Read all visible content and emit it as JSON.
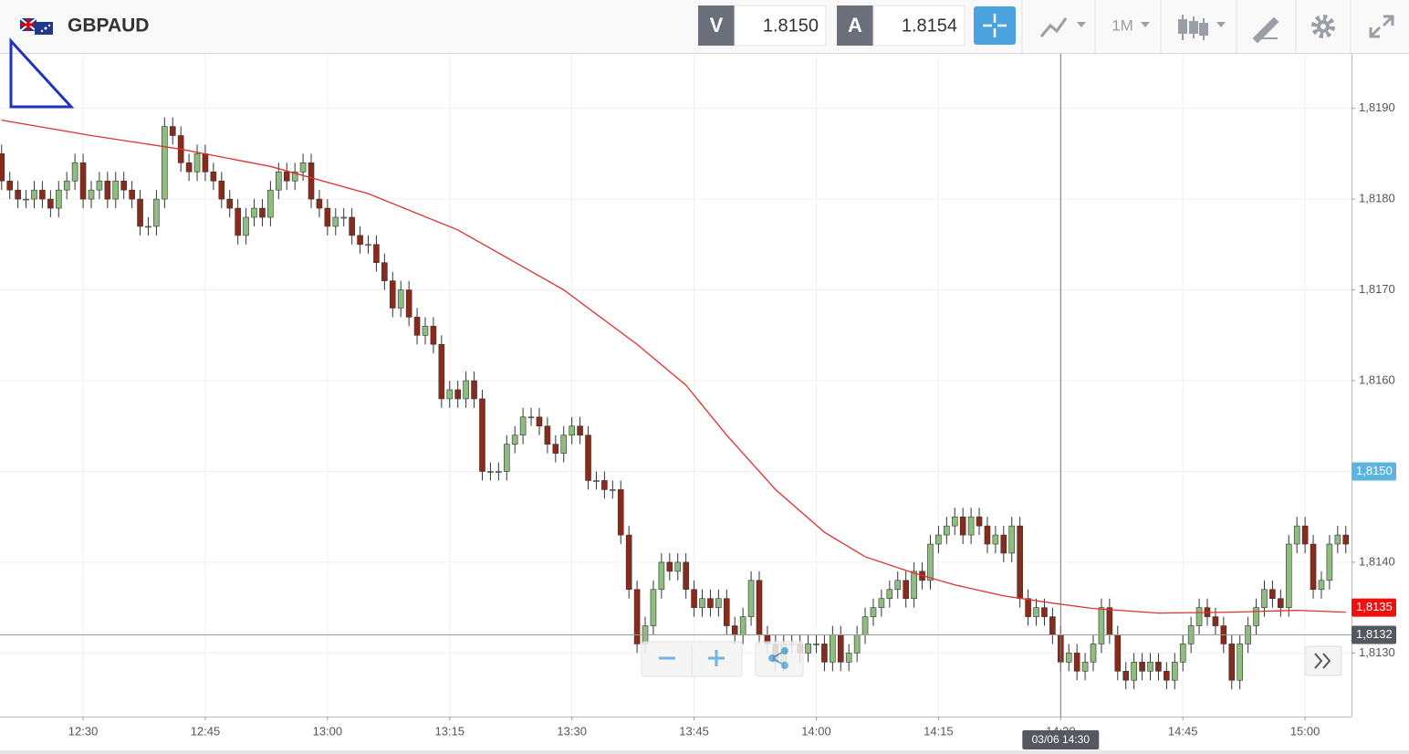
{
  "toolbar": {
    "symbol": "GBPAUD",
    "sell_label": "V",
    "sell_price": "1.8150",
    "buy_label": "A",
    "buy_price": "1.8154",
    "timeframe": "1M"
  },
  "chart_data": {
    "type": "candlestick",
    "xlim": [
      739.8,
      905.7
    ],
    "ylim": [
      1.8123,
      1.8196
    ],
    "grid": true,
    "xticks": [
      {
        "value": 750,
        "label": "12:30"
      },
      {
        "value": 765,
        "label": "12:45"
      },
      {
        "value": 780,
        "label": "13:00"
      },
      {
        "value": 795,
        "label": "13:15"
      },
      {
        "value": 810,
        "label": "13:30"
      },
      {
        "value": 825,
        "label": "13:45"
      },
      {
        "value": 840,
        "label": "14:00"
      },
      {
        "value": 855,
        "label": "14:15"
      },
      {
        "value": 870,
        "label": "14:30"
      },
      {
        "value": 885,
        "label": "14:45"
      },
      {
        "value": 900,
        "label": "15:00"
      }
    ],
    "yticks": [
      {
        "value": 1.813,
        "label": "1,8130"
      },
      {
        "value": 1.814,
        "label": "1,8140"
      },
      {
        "value": 1.815,
        "label": "1,8150"
      },
      {
        "value": 1.816,
        "label": "1,8160"
      },
      {
        "value": 1.817,
        "label": "1,8170"
      },
      {
        "value": 1.818,
        "label": "1,8180"
      },
      {
        "value": 1.819,
        "label": "1,8190"
      }
    ],
    "candles": {
      "up_color": "#8fbc7f",
      "down_color": "#8b2a1a",
      "x": [
        740,
        741,
        742,
        743,
        744,
        745,
        746,
        747,
        748,
        749,
        750,
        751,
        752,
        753,
        754,
        755,
        756,
        757,
        758,
        759,
        760,
        761,
        762,
        763,
        764,
        765,
        766,
        767,
        768,
        769,
        770,
        771,
        772,
        773,
        774,
        775,
        776,
        777,
        778,
        779,
        780,
        781,
        782,
        783,
        784,
        785,
        786,
        787,
        788,
        789,
        790,
        791,
        792,
        793,
        794,
        795,
        796,
        797,
        798,
        799,
        800,
        801,
        802,
        803,
        804,
        805,
        806,
        807,
        808,
        809,
        810,
        811,
        812,
        813,
        814,
        815,
        816,
        817,
        818,
        819,
        820,
        821,
        822,
        823,
        824,
        825,
        826,
        827,
        828,
        829,
        830,
        831,
        832,
        833,
        834,
        835,
        836,
        837,
        838,
        839,
        840,
        841,
        842,
        843,
        844,
        845,
        846,
        847,
        848,
        849,
        850,
        851,
        852,
        853,
        854,
        855,
        856,
        857,
        858,
        859,
        860,
        861,
        862,
        863,
        864,
        865,
        866,
        867,
        868,
        869,
        870,
        871,
        872,
        873,
        874,
        875,
        876,
        877,
        878,
        879,
        880,
        881,
        882,
        883,
        884,
        885,
        886,
        887,
        888,
        889,
        890,
        891,
        892,
        893,
        894,
        895,
        896,
        897,
        898,
        899,
        900,
        901,
        902,
        903,
        904,
        905
      ],
      "open": [
        1.8185,
        1.8182,
        1.8181,
        1.818,
        1.818,
        1.8181,
        1.818,
        1.8179,
        1.8181,
        1.8182,
        1.8184,
        1.818,
        1.8181,
        1.8182,
        1.818,
        1.8182,
        1.8181,
        1.818,
        1.8177,
        1.8177,
        1.818,
        1.8188,
        1.8187,
        1.8184,
        1.8183,
        1.8185,
        1.8183,
        1.8182,
        1.818,
        1.8179,
        1.8176,
        1.8178,
        1.8179,
        1.8178,
        1.8181,
        1.8183,
        1.8182,
        1.8183,
        1.8184,
        1.818,
        1.8179,
        1.8177,
        1.8178,
        1.8178,
        1.8176,
        1.8175,
        1.8175,
        1.8173,
        1.8171,
        1.8168,
        1.817,
        1.8167,
        1.8165,
        1.8166,
        1.8164,
        1.8158,
        1.8159,
        1.8158,
        1.816,
        1.8158,
        1.815,
        1.815,
        1.815,
        1.8153,
        1.8154,
        1.8156,
        1.8156,
        1.8155,
        1.8153,
        1.8152,
        1.8154,
        1.8155,
        1.8154,
        1.8149,
        1.8149,
        1.8148,
        1.8148,
        1.8143,
        1.8137,
        1.8131,
        1.8133,
        1.8137,
        1.814,
        1.8139,
        1.814,
        1.8137,
        1.8135,
        1.8136,
        1.8135,
        1.8136,
        1.8133,
        1.8132,
        1.8134,
        1.8138,
        1.8132,
        1.8131,
        1.8129,
        1.8131,
        1.8131,
        1.813,
        1.8131,
        1.8131,
        1.8129,
        1.8132,
        1.8129,
        1.813,
        1.8132,
        1.8134,
        1.8135,
        1.8136,
        1.8137,
        1.8138,
        1.8136,
        1.8139,
        1.8138,
        1.8142,
        1.8143,
        1.8144,
        1.8145,
        1.8143,
        1.8145,
        1.8144,
        1.8142,
        1.8143,
        1.8141,
        1.8144,
        1.8136,
        1.8134,
        1.8135,
        1.8134,
        1.8132,
        1.8129,
        1.813,
        1.8128,
        1.8129,
        1.8131,
        1.8135,
        1.8132,
        1.8128,
        1.8127,
        1.8129,
        1.8128,
        1.8129,
        1.8128,
        1.8127,
        1.8129,
        1.8131,
        1.8133,
        1.8135,
        1.8134,
        1.8133,
        1.8131,
        1.8127,
        1.8131,
        1.8133,
        1.8135,
        1.8137,
        1.8136,
        1.8135,
        1.8142,
        1.8144,
        1.8142,
        1.8137,
        1.8138,
        1.8142,
        1.8143
      ],
      "high": [
        1.8186,
        1.8183,
        1.8182,
        1.8181,
        1.8182,
        1.8182,
        1.8181,
        1.8182,
        1.8183,
        1.8185,
        1.8185,
        1.8182,
        1.8183,
        1.8183,
        1.8183,
        1.8183,
        1.8182,
        1.8181,
        1.8178,
        1.8181,
        1.8189,
        1.8189,
        1.8188,
        1.8185,
        1.8186,
        1.8186,
        1.8184,
        1.8183,
        1.8181,
        1.818,
        1.8179,
        1.818,
        1.818,
        1.8182,
        1.8184,
        1.8184,
        1.8184,
        1.8185,
        1.8185,
        1.8181,
        1.818,
        1.8179,
        1.8179,
        1.8179,
        1.8177,
        1.8176,
        1.8176,
        1.8174,
        1.8172,
        1.8171,
        1.8171,
        1.8168,
        1.8167,
        1.8167,
        1.8165,
        1.816,
        1.816,
        1.8161,
        1.8161,
        1.8159,
        1.8151,
        1.8151,
        1.8154,
        1.8155,
        1.8157,
        1.8157,
        1.8157,
        1.8156,
        1.8154,
        1.8155,
        1.8156,
        1.8156,
        1.8155,
        1.815,
        1.815,
        1.8149,
        1.8149,
        1.8144,
        1.8138,
        1.8134,
        1.8138,
        1.8141,
        1.8141,
        1.8141,
        1.8141,
        1.8138,
        1.8137,
        1.8137,
        1.8137,
        1.8137,
        1.8134,
        1.8135,
        1.8139,
        1.8139,
        1.8133,
        1.8132,
        1.8132,
        1.8132,
        1.8132,
        1.8132,
        1.8132,
        1.8132,
        1.8133,
        1.8133,
        1.8131,
        1.8133,
        1.8135,
        1.8136,
        1.8137,
        1.8138,
        1.8139,
        1.8139,
        1.814,
        1.814,
        1.8143,
        1.8144,
        1.8145,
        1.8146,
        1.8146,
        1.8146,
        1.8146,
        1.8145,
        1.8144,
        1.8144,
        1.8145,
        1.8145,
        1.8137,
        1.8136,
        1.8136,
        1.8135,
        1.8133,
        1.8131,
        1.8131,
        1.813,
        1.8132,
        1.8136,
        1.8136,
        1.8133,
        1.8129,
        1.813,
        1.813,
        1.813,
        1.813,
        1.8129,
        1.813,
        1.8132,
        1.8134,
        1.8136,
        1.8136,
        1.8135,
        1.8134,
        1.8132,
        1.8132,
        1.8134,
        1.8136,
        1.8138,
        1.8138,
        1.8137,
        1.8143,
        1.8145,
        1.8145,
        1.8143,
        1.8139,
        1.8143,
        1.8144,
        1.8144
      ],
      "low": [
        1.8181,
        1.818,
        1.8179,
        1.8179,
        1.8179,
        1.8179,
        1.8178,
        1.8178,
        1.818,
        1.8181,
        1.8179,
        1.8179,
        1.818,
        1.8179,
        1.8179,
        1.818,
        1.8179,
        1.8176,
        1.8176,
        1.8176,
        1.8179,
        1.8186,
        1.8183,
        1.8182,
        1.8182,
        1.8182,
        1.8181,
        1.8179,
        1.8178,
        1.8175,
        1.8175,
        1.8177,
        1.8177,
        1.8177,
        1.818,
        1.8181,
        1.8181,
        1.8182,
        1.8179,
        1.8178,
        1.8176,
        1.8176,
        1.8177,
        1.8175,
        1.8174,
        1.8174,
        1.8172,
        1.817,
        1.8167,
        1.8167,
        1.8166,
        1.8164,
        1.8164,
        1.8163,
        1.8157,
        1.8157,
        1.8157,
        1.8157,
        1.8157,
        1.8149,
        1.8149,
        1.8149,
        1.8149,
        1.8152,
        1.8153,
        1.8155,
        1.8154,
        1.8152,
        1.8151,
        1.8151,
        1.8153,
        1.8153,
        1.8148,
        1.8148,
        1.8147,
        1.8147,
        1.8142,
        1.8136,
        1.813,
        1.813,
        1.8132,
        1.8136,
        1.8138,
        1.8138,
        1.8136,
        1.8134,
        1.8134,
        1.8134,
        1.8134,
        1.8132,
        1.8131,
        1.8131,
        1.8133,
        1.8131,
        1.813,
        1.8128,
        1.8128,
        1.813,
        1.8129,
        1.8129,
        1.813,
        1.8128,
        1.8128,
        1.8128,
        1.8128,
        1.8129,
        1.8131,
        1.8133,
        1.8134,
        1.8135,
        1.8136,
        1.8135,
        1.8135,
        1.8137,
        1.8137,
        1.8141,
        1.8142,
        1.8143,
        1.8142,
        1.8142,
        1.8143,
        1.8141,
        1.8141,
        1.814,
        1.814,
        1.8135,
        1.8133,
        1.8133,
        1.8133,
        1.8131,
        1.8128,
        1.8128,
        1.8127,
        1.8127,
        1.8128,
        1.813,
        1.8131,
        1.8127,
        1.8126,
        1.8126,
        1.8127,
        1.8127,
        1.8127,
        1.8126,
        1.8126,
        1.8128,
        1.813,
        1.8132,
        1.8133,
        1.8132,
        1.813,
        1.8126,
        1.8126,
        1.813,
        1.8132,
        1.8134,
        1.8135,
        1.8134,
        1.8134,
        1.8141,
        1.8141,
        1.8136,
        1.8136,
        1.8137,
        1.8141,
        1.8141
      ],
      "close": [
        1.8182,
        1.8181,
        1.818,
        1.818,
        1.8181,
        1.818,
        1.8179,
        1.8181,
        1.8182,
        1.8184,
        1.818,
        1.8181,
        1.8182,
        1.818,
        1.8182,
        1.8181,
        1.818,
        1.8177,
        1.8177,
        1.818,
        1.8188,
        1.8187,
        1.8184,
        1.8183,
        1.8185,
        1.8183,
        1.8182,
        1.818,
        1.8179,
        1.8176,
        1.8178,
        1.8179,
        1.8178,
        1.8181,
        1.8183,
        1.8182,
        1.8183,
        1.8184,
        1.818,
        1.8179,
        1.8177,
        1.8178,
        1.8178,
        1.8176,
        1.8175,
        1.8175,
        1.8173,
        1.8171,
        1.8168,
        1.817,
        1.8167,
        1.8165,
        1.8166,
        1.8164,
        1.8158,
        1.8159,
        1.8158,
        1.816,
        1.8158,
        1.815,
        1.815,
        1.815,
        1.8153,
        1.8154,
        1.8156,
        1.8156,
        1.8155,
        1.8153,
        1.8152,
        1.8154,
        1.8155,
        1.8154,
        1.8149,
        1.8149,
        1.8148,
        1.8148,
        1.8143,
        1.8137,
        1.8131,
        1.8133,
        1.8137,
        1.814,
        1.8139,
        1.814,
        1.8137,
        1.8135,
        1.8136,
        1.8135,
        1.8136,
        1.8133,
        1.8132,
        1.8134,
        1.8138,
        1.8132,
        1.8131,
        1.8129,
        1.8131,
        1.8131,
        1.813,
        1.8131,
        1.8131,
        1.8129,
        1.8132,
        1.8129,
        1.813,
        1.8132,
        1.8134,
        1.8135,
        1.8136,
        1.8137,
        1.8138,
        1.8136,
        1.8139,
        1.8138,
        1.8142,
        1.8143,
        1.8144,
        1.8145,
        1.8143,
        1.8145,
        1.8144,
        1.8142,
        1.8143,
        1.8141,
        1.8144,
        1.8136,
        1.8134,
        1.8135,
        1.8134,
        1.8132,
        1.8129,
        1.813,
        1.8128,
        1.8129,
        1.8131,
        1.8135,
        1.8132,
        1.8128,
        1.8127,
        1.8129,
        1.8128,
        1.8129,
        1.8128,
        1.8127,
        1.8129,
        1.8131,
        1.8133,
        1.8135,
        1.8134,
        1.8133,
        1.8131,
        1.8127,
        1.8131,
        1.8133,
        1.8135,
        1.8137,
        1.8136,
        1.8135,
        1.8142,
        1.8144,
        1.8142,
        1.8137,
        1.8138,
        1.8142,
        1.8143,
        1.8142
      ]
    },
    "moving_average": {
      "color": "#e03030",
      "x": [
        740,
        751,
        762,
        773,
        785,
        796,
        809,
        818,
        824,
        829,
        835,
        841,
        846,
        852,
        857,
        863,
        869,
        874,
        882,
        891,
        899,
        905
      ],
      "values": [
        1.81887,
        1.8187,
        1.81855,
        1.81836,
        1.81806,
        1.81766,
        1.817,
        1.8164,
        1.81595,
        1.8154,
        1.8148,
        1.81433,
        1.81406,
        1.81388,
        1.81375,
        1.81363,
        1.81355,
        1.81349,
        1.81344,
        1.81345,
        1.81347,
        1.81345
      ]
    },
    "markers": [
      {
        "value": 1.815,
        "label": "1,8150",
        "color": "#5bb5e0"
      },
      {
        "value": 1.8135,
        "label": "1,8135",
        "color": "#f01010"
      }
    ],
    "crosshair": {
      "x": 870,
      "x_label": "03/06 14:30",
      "y": 1.8132,
      "y_label": "1,8132",
      "color": "#55595f"
    }
  }
}
